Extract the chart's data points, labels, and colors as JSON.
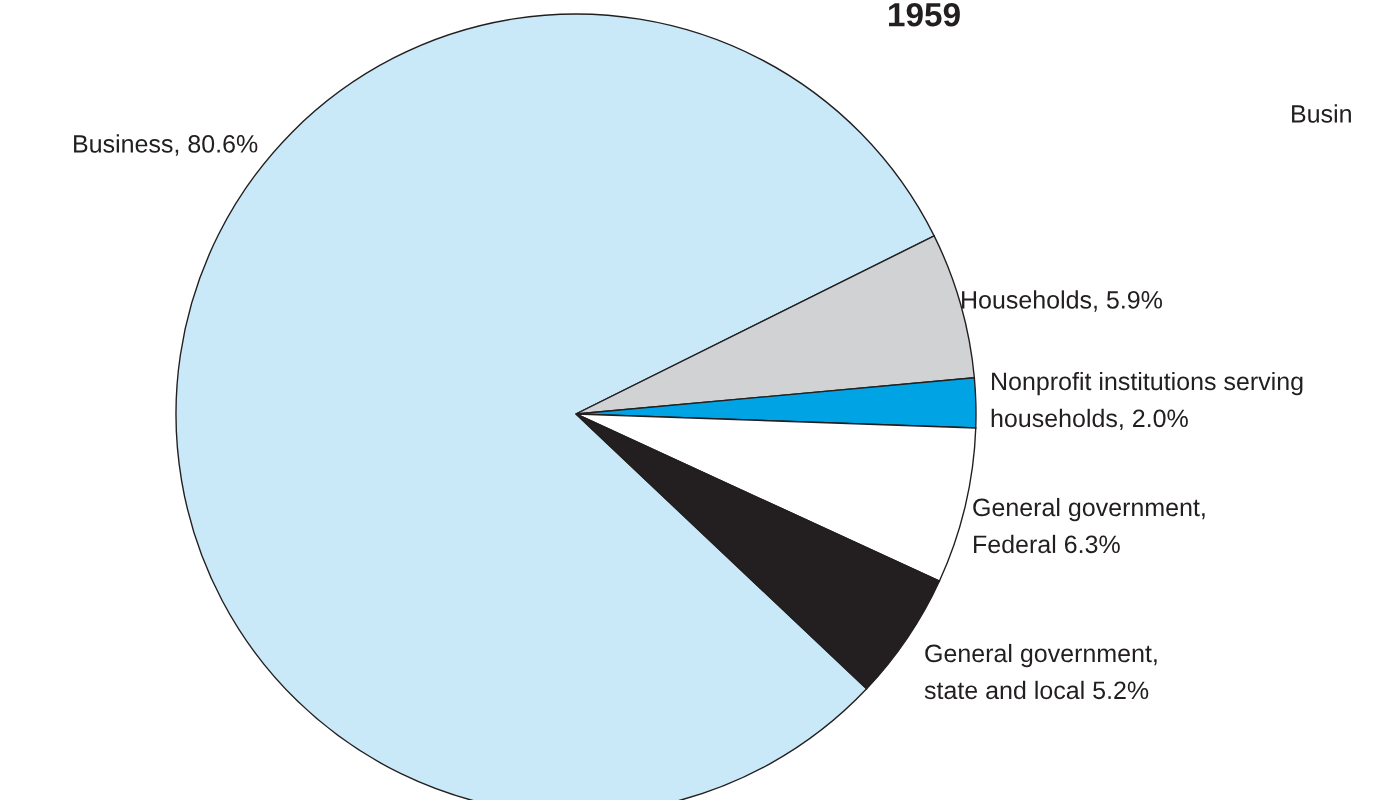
{
  "chart_data": {
    "type": "pie",
    "title": "1959",
    "categories": [
      "Business",
      "Households",
      "Nonprofit institutions serving\nhouseholds",
      "General government,\nFederal",
      "General government,\nstate and local"
    ],
    "values": [
      80.6,
      5.9,
      2.0,
      6.3,
      5.2
    ],
    "colors": [
      "#c9e9f8",
      "#d1d2d4",
      "#00a4e4",
      "#ffffff",
      "#231f20"
    ],
    "value_labels": [
      "80.6%",
      "5.9%",
      "2.0%",
      "6.3%",
      "5.2%"
    ],
    "annotations": [
      "Busin"
    ]
  }
}
